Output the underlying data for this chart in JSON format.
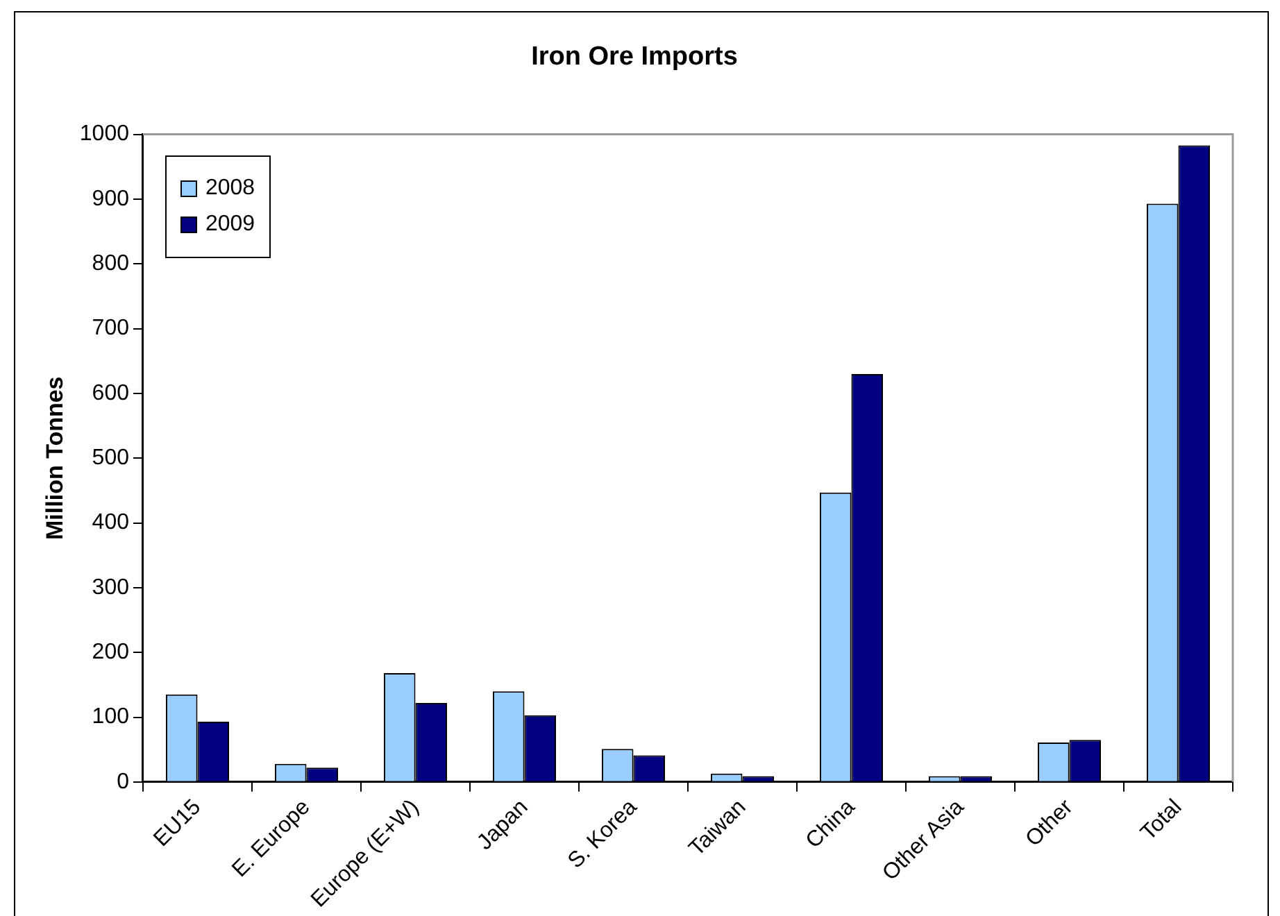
{
  "chart_data": {
    "type": "bar",
    "title": "Iron Ore Imports",
    "ylabel": "Million Tonnes",
    "categories": [
      "EU15",
      "E. Europe",
      "Europe (E+W)",
      "Japan",
      "S. Korea",
      "Taiwan",
      "China",
      "Other Asia",
      "Other",
      "Total"
    ],
    "series": [
      {
        "name": "2008",
        "color": "#99ccff",
        "values": [
          135,
          28,
          168,
          140,
          51,
          13,
          447,
          9,
          61,
          893
        ]
      },
      {
        "name": "2009",
        "color": "#000080",
        "values": [
          93,
          22,
          122,
          103,
          41,
          9,
          630,
          9,
          65,
          983
        ]
      }
    ],
    "ylim": [
      0,
      1000
    ],
    "yticks": [
      0,
      100,
      200,
      300,
      400,
      500,
      600,
      700,
      800,
      900,
      1000
    ],
    "legend": "top left"
  }
}
